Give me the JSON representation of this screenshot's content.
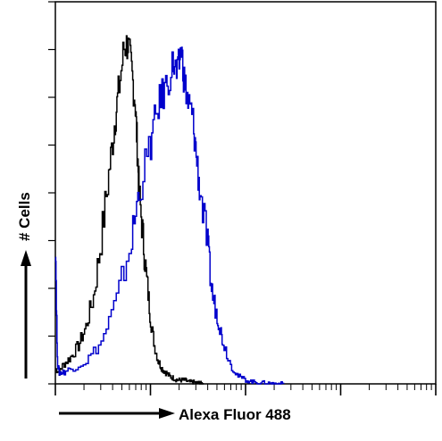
{
  "chart_data": {
    "type": "line",
    "title": "",
    "xlabel": "Alexa Fluor 488",
    "ylabel": "# Cells",
    "x_scale": "log",
    "x_decades": 4,
    "xlim": [
      0,
      1
    ],
    "ylim": [
      0,
      1
    ],
    "grid": false,
    "legend": "none",
    "series": [
      {
        "color": "#000000",
        "x": [
          0.0,
          0.01,
          0.02,
          0.04,
          0.06,
          0.08,
          0.1,
          0.12,
          0.14,
          0.155,
          0.165,
          0.18,
          0.19,
          0.2,
          0.21,
          0.215,
          0.22,
          0.23,
          0.24,
          0.25,
          0.26,
          0.27,
          0.28,
          0.29,
          0.3,
          0.31,
          0.32,
          0.33,
          0.34,
          0.35,
          0.36,
          0.37,
          0.38,
          0.385,
          0.39
        ],
        "y": [
          0.04,
          0.03,
          0.05,
          0.07,
          0.1,
          0.15,
          0.23,
          0.38,
          0.55,
          0.68,
          0.76,
          0.88,
          0.89,
          0.82,
          0.73,
          0.62,
          0.5,
          0.38,
          0.27,
          0.17,
          0.1,
          0.06,
          0.04,
          0.03,
          0.02,
          0.015,
          0.01,
          0.01,
          0.01,
          0.005,
          0.005,
          0.003,
          0.002,
          0.001,
          0.0
        ]
      },
      {
        "color": "#0000cc",
        "x": [
          0.0,
          0.005,
          0.01,
          0.02,
          0.04,
          0.08,
          0.12,
          0.16,
          0.2,
          0.22,
          0.25,
          0.27,
          0.29,
          0.31,
          0.32,
          0.33,
          0.34,
          0.35,
          0.36,
          0.37,
          0.38,
          0.4,
          0.41,
          0.42,
          0.43,
          0.44,
          0.46,
          0.48,
          0.5,
          0.52,
          0.54,
          0.56,
          0.58,
          0.6
        ],
        "y": [
          0.38,
          0.06,
          0.03,
          0.03,
          0.04,
          0.06,
          0.11,
          0.22,
          0.38,
          0.51,
          0.63,
          0.73,
          0.78,
          0.84,
          0.8,
          0.88,
          0.78,
          0.73,
          0.7,
          0.6,
          0.5,
          0.36,
          0.25,
          0.2,
          0.16,
          0.11,
          0.05,
          0.02,
          0.01,
          0.005,
          0.003,
          0.002,
          0.001,
          0.0
        ]
      }
    ]
  }
}
